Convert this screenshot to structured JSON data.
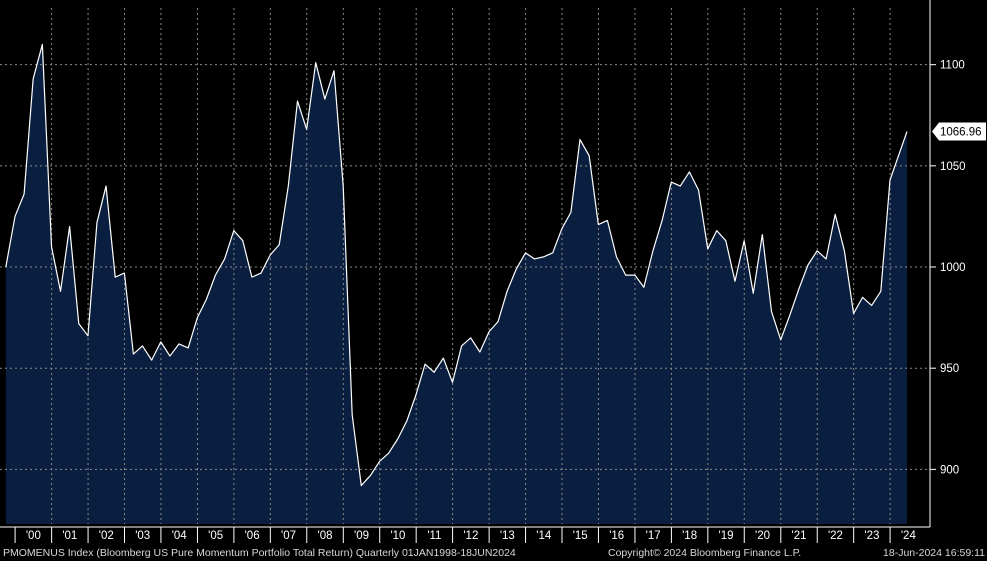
{
  "chart_data": {
    "type": "area",
    "title": "",
    "xlabel": "",
    "ylabel": "",
    "x_tick_labels": [
      "'00",
      "'01",
      "'02",
      "'03",
      "'04",
      "'05",
      "'06",
      "'07",
      "'08",
      "'09",
      "'10",
      "'11",
      "'12",
      "'13",
      "'14",
      "'15",
      "'16",
      "'17",
      "'18",
      "'19",
      "'20",
      "'21",
      "'22",
      "'23",
      "'24"
    ],
    "y_ticks": [
      900,
      950,
      1000,
      1050,
      1100
    ],
    "ylim": [
      873,
      1128
    ],
    "grid": true,
    "last_value_label": "1066.96",
    "series": [
      {
        "frequency": "quarterly",
        "points": [
          [
            "1999-09-30",
            1000
          ],
          [
            "1999-12-31",
            1025
          ],
          [
            "2000-03-31",
            1036
          ],
          [
            "2000-06-30",
            1093
          ],
          [
            "2000-09-30",
            1110
          ],
          [
            "2000-12-31",
            1010
          ],
          [
            "2001-03-31",
            988
          ],
          [
            "2001-06-30",
            1020
          ],
          [
            "2001-09-30",
            972
          ],
          [
            "2001-12-31",
            966
          ],
          [
            "2002-03-31",
            1022
          ],
          [
            "2002-06-30",
            1040
          ],
          [
            "2002-09-30",
            995
          ],
          [
            "2002-12-31",
            997
          ],
          [
            "2003-03-31",
            957
          ],
          [
            "2003-06-30",
            961
          ],
          [
            "2003-09-30",
            954
          ],
          [
            "2003-12-31",
            963
          ],
          [
            "2004-03-31",
            956
          ],
          [
            "2004-06-30",
            962
          ],
          [
            "2004-09-30",
            960
          ],
          [
            "2004-12-31",
            975
          ],
          [
            "2005-03-31",
            984
          ],
          [
            "2005-06-30",
            996
          ],
          [
            "2005-09-30",
            1004
          ],
          [
            "2005-12-31",
            1018
          ],
          [
            "2006-03-31",
            1013
          ],
          [
            "2006-06-30",
            995
          ],
          [
            "2006-09-30",
            997
          ],
          [
            "2006-12-31",
            1006
          ],
          [
            "2007-03-31",
            1011
          ],
          [
            "2007-06-30",
            1040
          ],
          [
            "2007-09-30",
            1082
          ],
          [
            "2007-12-31",
            1068
          ],
          [
            "2008-03-31",
            1101
          ],
          [
            "2008-06-30",
            1083
          ],
          [
            "2008-09-30",
            1097
          ],
          [
            "2008-12-31",
            1040
          ],
          [
            "2009-03-31",
            927
          ],
          [
            "2009-06-30",
            892
          ],
          [
            "2009-09-30",
            897
          ],
          [
            "2009-12-31",
            904
          ],
          [
            "2010-03-31",
            908
          ],
          [
            "2010-06-30",
            915
          ],
          [
            "2010-09-30",
            924
          ],
          [
            "2010-12-31",
            937
          ],
          [
            "2011-03-31",
            952
          ],
          [
            "2011-06-30",
            948
          ],
          [
            "2011-09-30",
            955
          ],
          [
            "2011-12-31",
            943
          ],
          [
            "2012-03-31",
            961
          ],
          [
            "2012-06-30",
            965
          ],
          [
            "2012-09-30",
            958
          ],
          [
            "2012-12-31",
            968
          ],
          [
            "2013-03-31",
            973
          ],
          [
            "2013-06-30",
            988
          ],
          [
            "2013-09-30",
            999
          ],
          [
            "2013-12-31",
            1007
          ],
          [
            "2014-03-31",
            1004
          ],
          [
            "2014-06-30",
            1005
          ],
          [
            "2014-09-30",
            1007
          ],
          [
            "2014-12-31",
            1019
          ],
          [
            "2015-03-31",
            1027
          ],
          [
            "2015-06-30",
            1063
          ],
          [
            "2015-09-30",
            1055
          ],
          [
            "2015-12-31",
            1021
          ],
          [
            "2016-03-31",
            1023
          ],
          [
            "2016-06-30",
            1005
          ],
          [
            "2016-09-30",
            996
          ],
          [
            "2016-12-31",
            996
          ],
          [
            "2017-03-31",
            990
          ],
          [
            "2017-06-30",
            1008
          ],
          [
            "2017-09-30",
            1023
          ],
          [
            "2017-12-31",
            1042
          ],
          [
            "2018-03-31",
            1040
          ],
          [
            "2018-06-30",
            1047
          ],
          [
            "2018-09-30",
            1038
          ],
          [
            "2018-12-31",
            1009
          ],
          [
            "2019-03-31",
            1018
          ],
          [
            "2019-06-30",
            1013
          ],
          [
            "2019-09-30",
            993
          ],
          [
            "2019-12-31",
            1013
          ],
          [
            "2020-03-31",
            987
          ],
          [
            "2020-06-30",
            1016
          ],
          [
            "2020-09-30",
            978
          ],
          [
            "2020-12-31",
            964
          ],
          [
            "2021-03-31",
            976
          ],
          [
            "2021-06-30",
            989
          ],
          [
            "2021-09-30",
            1001
          ],
          [
            "2021-12-31",
            1008
          ],
          [
            "2022-03-31",
            1004
          ],
          [
            "2022-06-30",
            1026
          ],
          [
            "2022-09-30",
            1008
          ],
          [
            "2022-12-31",
            977
          ],
          [
            "2023-03-31",
            985
          ],
          [
            "2023-06-30",
            981
          ],
          [
            "2023-09-30",
            988
          ],
          [
            "2023-12-31",
            1043
          ],
          [
            "2024-06-18",
            1066.96
          ]
        ]
      }
    ],
    "colors": {
      "background": "#000000",
      "fill": "#0a1f3f",
      "line": "#ffffff",
      "grid": "#8a8a8a",
      "text": "#ffffff",
      "label_bg": "#ffffff",
      "label_text": "#000000"
    }
  },
  "footer": {
    "left": "PMOMENUS Index (Bloomberg US Pure Momentum Portfolio Total Return)  Quarterly 01JAN1998-18JUN2024",
    "middle": "Copyright© 2024 Bloomberg Finance L.P.",
    "right": "18-Jun-2024 16:59:11"
  }
}
